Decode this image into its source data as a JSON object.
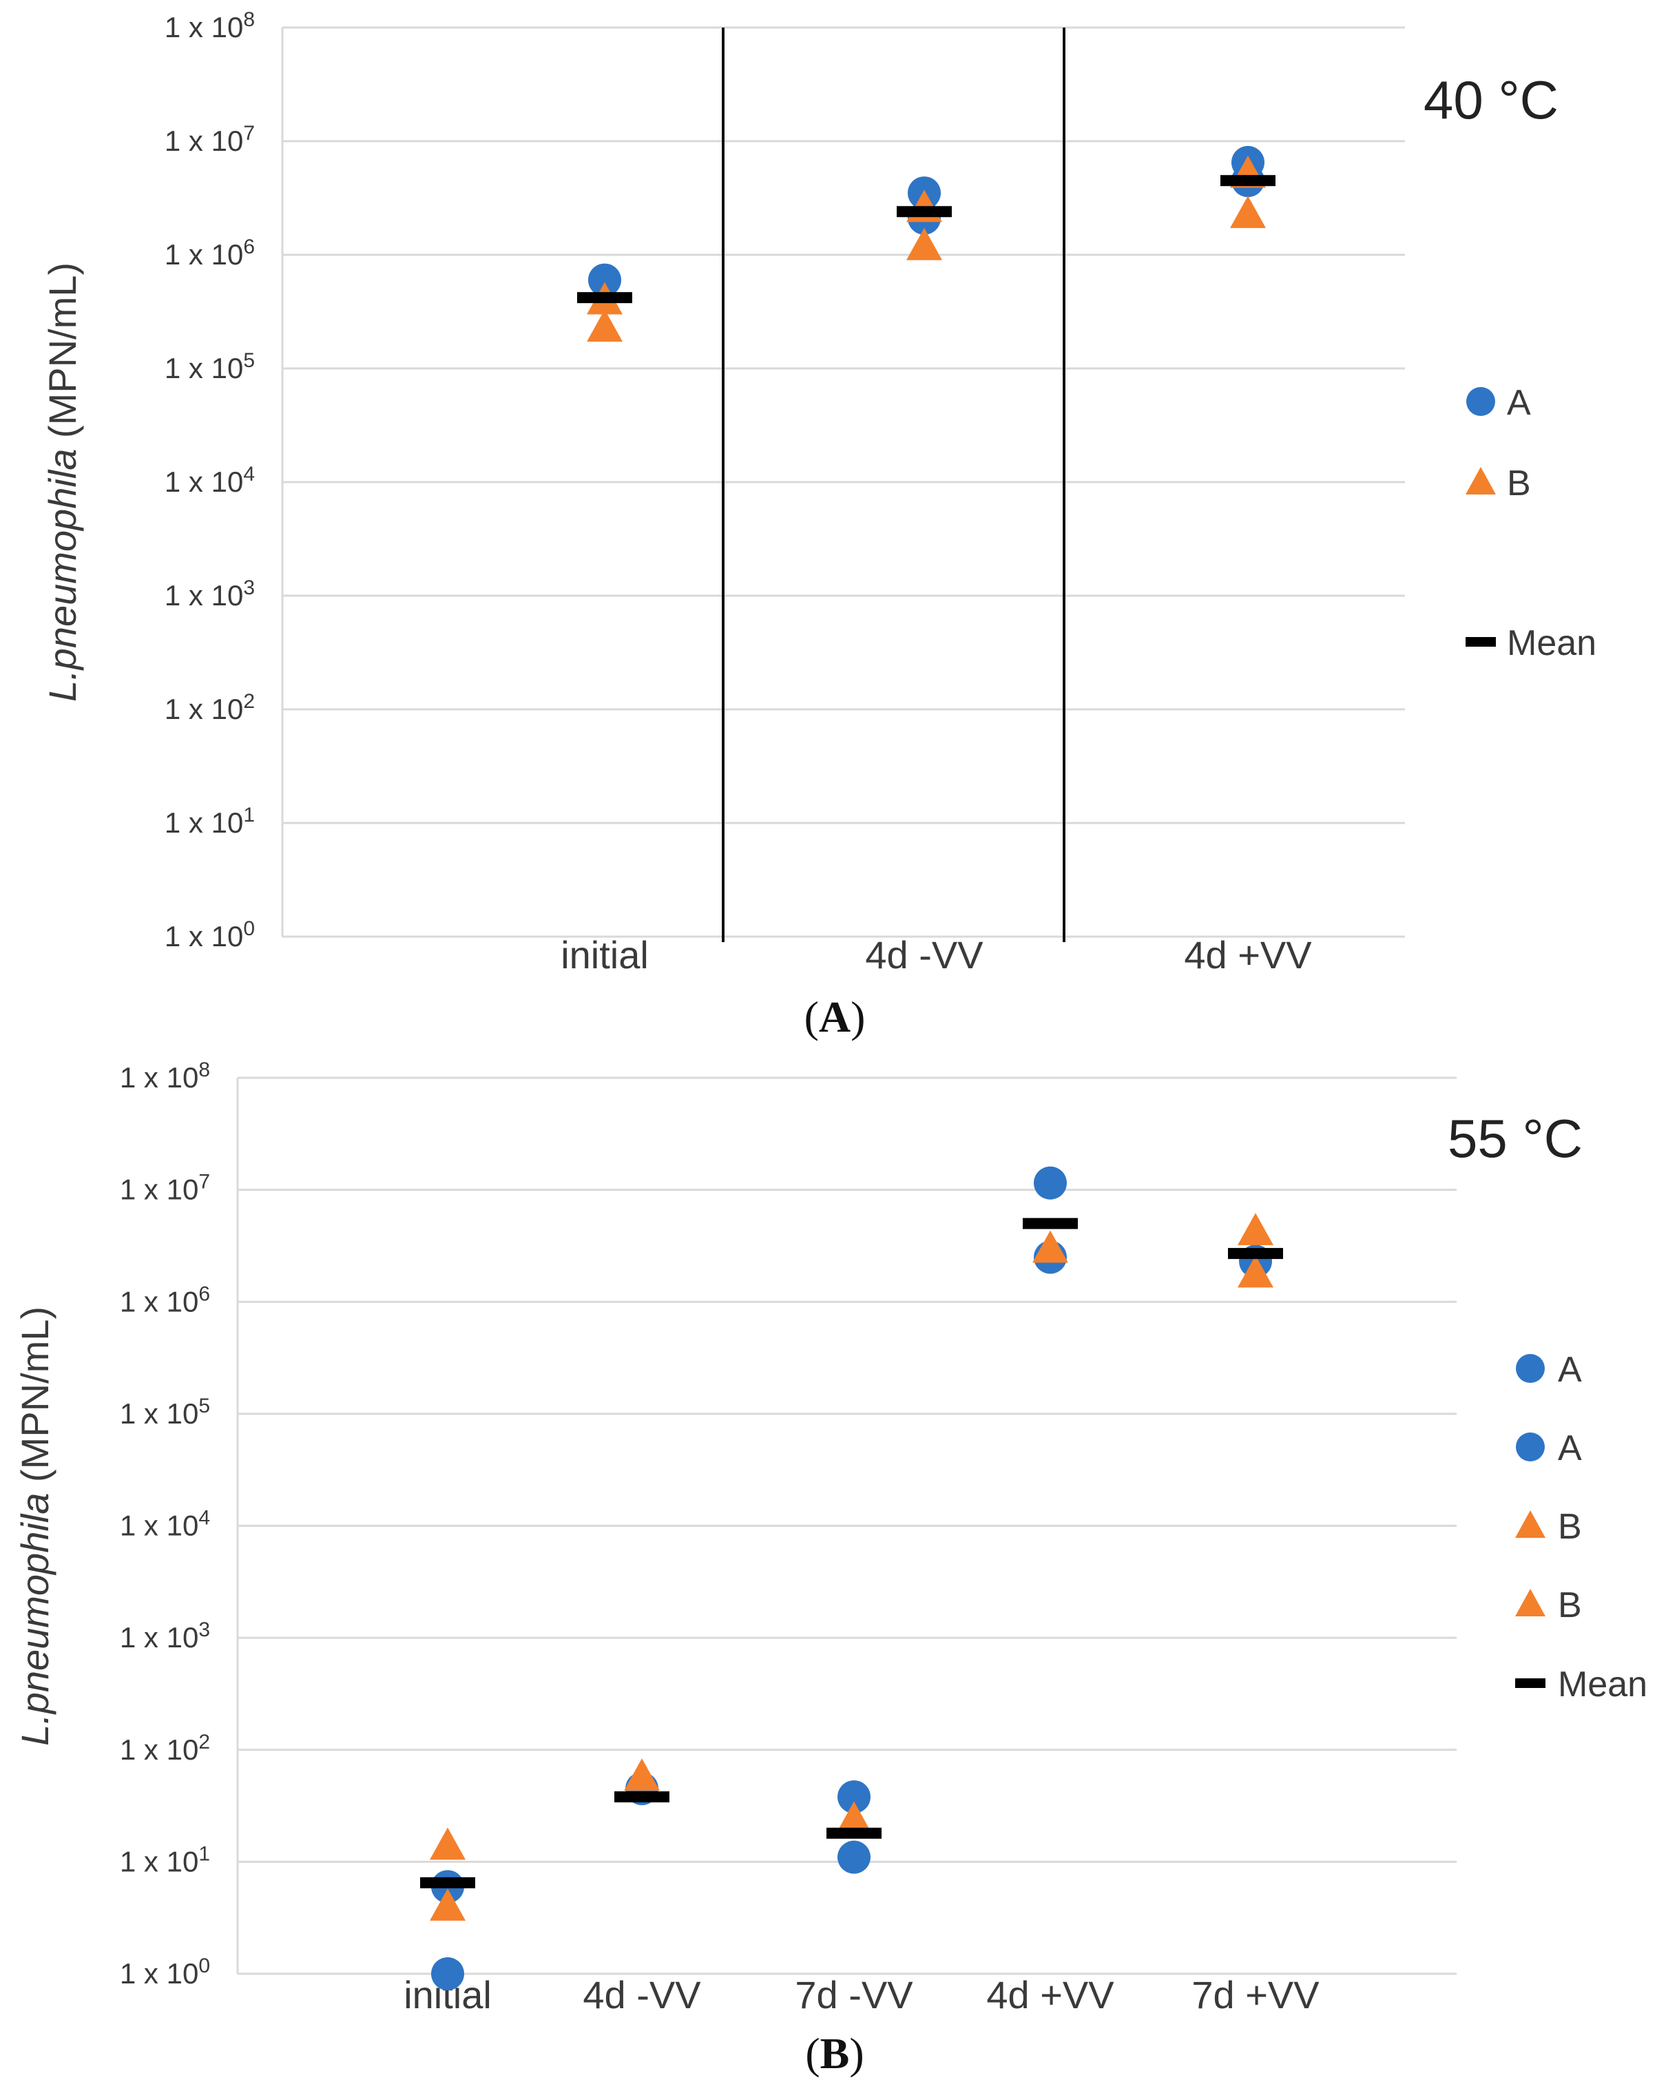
{
  "colors": {
    "A": "#2e75c6",
    "B": "#f4802b",
    "mean": "#000000",
    "grid": "#d9d9d9",
    "text": "#3a3a3a"
  },
  "chart_data": [
    {
      "type": "scatter",
      "panel_label": "A",
      "temperature": "40 °C",
      "ylabel_italic": "L.pneumophila",
      "ylabel_rest": " (MPN/mL)",
      "yscale": "log",
      "ylim_exp": [
        0,
        8
      ],
      "ytick_labels": [
        "1 x 10^0",
        "1 x 10^1",
        "1 x 10^2",
        "1 x 10^3",
        "1 x 10^4",
        "1 x 10^5",
        "1 x 10^6",
        "1 x 10^7",
        "1 x 10^8"
      ],
      "categories": [
        "initial",
        "4d -VV",
        "4d +VV"
      ],
      "separators_after": [
        0,
        1
      ],
      "legend": [
        "A",
        "B",
        "Mean"
      ],
      "series": [
        {
          "name": "A",
          "marker": "circle",
          "points": [
            {
              "cat": 0,
              "value": 600000
            },
            {
              "cat": 1,
              "value": 3500000
            },
            {
              "cat": 1,
              "value": 2100000
            },
            {
              "cat": 2,
              "value": 6500000
            },
            {
              "cat": 2,
              "value": 4500000
            }
          ]
        },
        {
          "name": "B",
          "marker": "triangle",
          "points": [
            {
              "cat": 0,
              "value": 400000
            },
            {
              "cat": 0,
              "value": 230000
            },
            {
              "cat": 1,
              "value": 2600000
            },
            {
              "cat": 1,
              "value": 1200000
            },
            {
              "cat": 2,
              "value": 5200000
            },
            {
              "cat": 2,
              "value": 2300000
            }
          ]
        },
        {
          "name": "Mean",
          "marker": "dash",
          "points": [
            {
              "cat": 0,
              "value": 420000
            },
            {
              "cat": 1,
              "value": 2400000
            },
            {
              "cat": 2,
              "value": 4500000
            }
          ]
        }
      ]
    },
    {
      "type": "scatter",
      "panel_label": "B",
      "temperature": "55 °C",
      "ylabel_italic": "L.pneumophila",
      "ylabel_rest": " (MPN/mL)",
      "yscale": "log",
      "ylim_exp": [
        0,
        8
      ],
      "ytick_labels": [
        "1 x 10^0",
        "1 x 10^1",
        "1 x 10^2",
        "1 x 10^3",
        "1 x 10^4",
        "1 x 10^5",
        "1 x 10^6",
        "1 x 10^7",
        "1 x 10^8"
      ],
      "categories": [
        "initial",
        "4d -VV",
        "7d -VV",
        "4d +VV",
        "7d +VV"
      ],
      "separators_after": [],
      "legend": [
        "A",
        "A",
        "B",
        "B",
        "Mean"
      ],
      "series": [
        {
          "name": "A",
          "marker": "circle",
          "points": [
            {
              "cat": 0,
              "value": 6
            },
            {
              "cat": 0,
              "value": 1
            },
            {
              "cat": 1,
              "value": 45
            },
            {
              "cat": 2,
              "value": 38
            },
            {
              "cat": 2,
              "value": 11
            },
            {
              "cat": 3,
              "value": 11500000
            },
            {
              "cat": 3,
              "value": 2500000
            },
            {
              "cat": 4,
              "value": 2300000
            }
          ]
        },
        {
          "name": "B",
          "marker": "triangle",
          "points": [
            {
              "cat": 0,
              "value": 14
            },
            {
              "cat": 0,
              "value": 4
            },
            {
              "cat": 1,
              "value": 58
            },
            {
              "cat": 2,
              "value": 24
            },
            {
              "cat": 3,
              "value": 3000000
            },
            {
              "cat": 4,
              "value": 4300000
            },
            {
              "cat": 4,
              "value": 1800000
            }
          ]
        },
        {
          "name": "Mean",
          "marker": "dash",
          "points": [
            {
              "cat": 0,
              "value": 6.5
            },
            {
              "cat": 1,
              "value": 38
            },
            {
              "cat": 2,
              "value": 18
            },
            {
              "cat": 3,
              "value": 5000000
            },
            {
              "cat": 4,
              "value": 2700000
            }
          ]
        }
      ]
    }
  ]
}
